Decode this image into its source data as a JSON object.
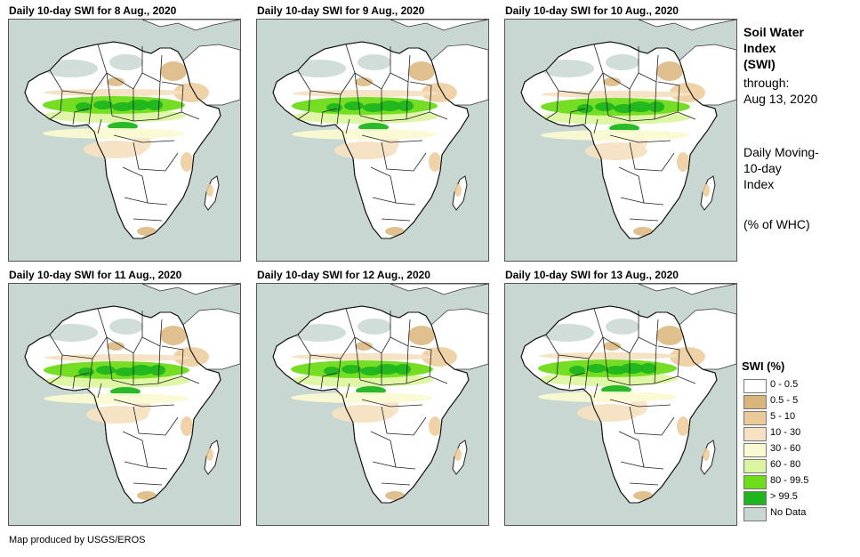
{
  "panels": [
    {
      "title": "Daily 10-day SWI for 8 Aug., 2020",
      "scene": "day-08"
    },
    {
      "title": "Daily 10-day SWI for 9 Aug., 2020",
      "scene": "day-09"
    },
    {
      "title": "Daily 10-day SWI for 10 Aug., 2020",
      "scene": "day-10"
    },
    {
      "title": "Daily 10-day SWI for 11 Aug., 2020",
      "scene": "day-11"
    },
    {
      "title": "Daily 10-day SWI for 12 Aug., 2020",
      "scene": "day-12"
    },
    {
      "title": "Daily 10-day SWI for 13 Aug., 2020",
      "scene": "day-13"
    }
  ],
  "side_panel": {
    "title_lines": [
      "Soil Water",
      "Index",
      "(SWI)"
    ],
    "through_label": "through:",
    "through_date": "Aug 13, 2020",
    "method_lines": [
      "Daily Moving-",
      "10-day",
      "Index"
    ],
    "unit_label": "(% of WHC)"
  },
  "legend": {
    "title": "SWI (%)",
    "items": [
      {
        "label": "0 - 0.5",
        "color": "#ffffff"
      },
      {
        "label": "0.5 - 5",
        "color": "#d9b57a"
      },
      {
        "label": "5 - 10",
        "color": "#ecca98"
      },
      {
        "label": "10 - 30",
        "color": "#f6e1c2"
      },
      {
        "label": "30 - 60",
        "color": "#fafad2"
      },
      {
        "label": "60 - 80",
        "color": "#dcf5a0"
      },
      {
        "label": "80 - 99.5",
        "color": "#6edc18"
      },
      {
        "label": "> 99.5",
        "color": "#1fb51f"
      },
      {
        "label": "No Data",
        "color": "#c8d7d1"
      }
    ]
  },
  "credit": "Map produced by USGS/EROS"
}
